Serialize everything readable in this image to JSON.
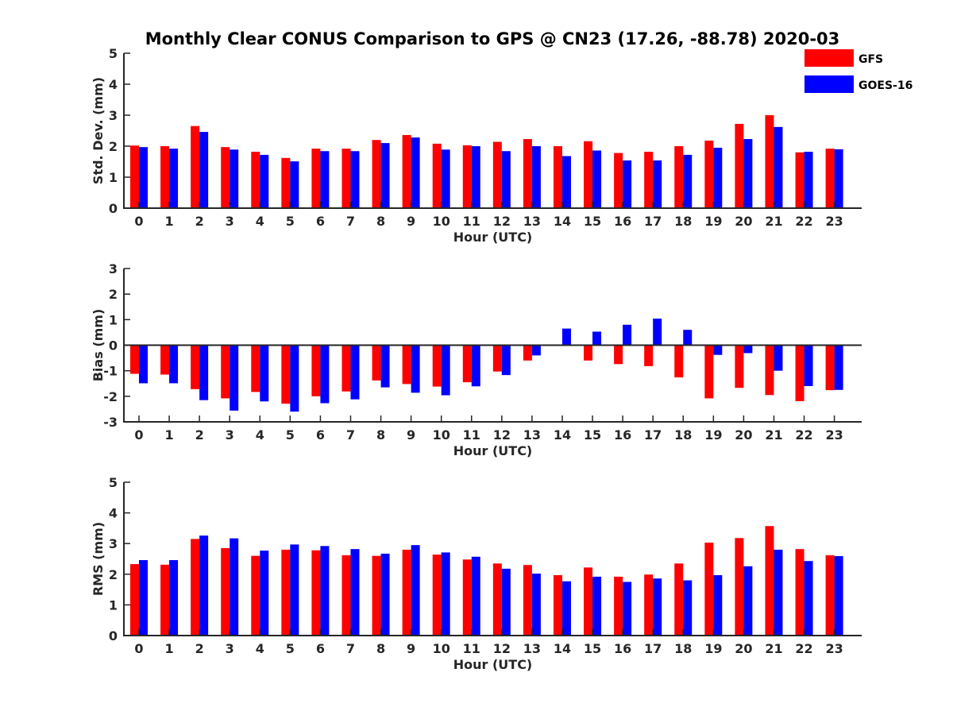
{
  "chart_data": {
    "type": "bar",
    "title": "Monthly Clear CONUS Comparison to GPS @ CN23 (17.26, -88.78) 2020-03",
    "legend": {
      "placement": "top-right",
      "entries": [
        {
          "name": "GFS",
          "color": "#ff0000"
        },
        {
          "name": "GOES-16",
          "color": "#0000ff"
        }
      ]
    },
    "categories": [
      "0",
      "1",
      "2",
      "3",
      "4",
      "5",
      "6",
      "7",
      "8",
      "9",
      "10",
      "11",
      "12",
      "13",
      "14",
      "15",
      "16",
      "17",
      "18",
      "19",
      "20",
      "21",
      "22",
      "23"
    ],
    "panels": [
      {
        "id": "std",
        "ylabel": "Std. Dev. (mm)",
        "xlabel": "Hour (UTC)",
        "ylim": [
          0,
          5
        ],
        "yticks": [
          0,
          1,
          2,
          3,
          4,
          5
        ],
        "series": [
          {
            "name": "GFS",
            "values": [
              2.02,
              2.0,
              2.65,
              1.97,
              1.82,
              1.62,
              1.92,
              1.92,
              2.2,
              2.36,
              2.08,
              2.03,
              2.14,
              2.23,
              2.0,
              2.16,
              1.78,
              1.82,
              2.0,
              2.18,
              2.72,
              3.0,
              1.8,
              1.92
            ]
          },
          {
            "name": "GOES-16",
            "values": [
              1.97,
              1.92,
              2.46,
              1.89,
              1.72,
              1.51,
              1.84,
              1.84,
              2.1,
              2.28,
              1.89,
              2.0,
              1.84,
              2.0,
              1.68,
              1.86,
              1.54,
              1.54,
              1.72,
              1.95,
              2.23,
              2.62,
              1.82,
              1.9
            ]
          }
        ]
      },
      {
        "id": "bias",
        "ylabel": "Bias (mm)",
        "xlabel": "Hour (UTC)",
        "ylim": [
          -3,
          3
        ],
        "yticks": [
          -3,
          -2,
          -1,
          0,
          1,
          2,
          3
        ],
        "series": [
          {
            "name": "GFS",
            "values": [
              -1.12,
              -1.15,
              -1.72,
              -2.08,
              -1.83,
              -2.29,
              -2.0,
              -1.81,
              -1.38,
              -1.52,
              -1.62,
              -1.45,
              -1.03,
              -0.6,
              -0.03,
              -0.6,
              -0.74,
              -0.82,
              -1.26,
              -2.08,
              -1.67,
              -1.95,
              -2.19,
              -1.76
            ]
          },
          {
            "name": "GOES-16",
            "values": [
              -1.49,
              -1.49,
              -2.15,
              -2.56,
              -2.2,
              -2.6,
              -2.27,
              -2.12,
              -1.65,
              -1.86,
              -1.96,
              -1.61,
              -1.17,
              -0.4,
              0.65,
              0.53,
              0.8,
              1.04,
              0.6,
              -0.38,
              -0.31,
              -1.0,
              -1.6,
              -1.75
            ]
          }
        ]
      },
      {
        "id": "rms",
        "ylabel": "RMS (mm)",
        "xlabel": "Hour (UTC)",
        "ylim": [
          0,
          5
        ],
        "yticks": [
          0,
          1,
          2,
          3,
          4,
          5
        ],
        "series": [
          {
            "name": "GFS",
            "values": [
              2.33,
              2.31,
              3.15,
              2.85,
              2.6,
              2.8,
              2.78,
              2.62,
              2.6,
              2.8,
              2.64,
              2.48,
              2.35,
              2.3,
              1.97,
              2.22,
              1.92,
              1.99,
              2.35,
              3.03,
              3.18,
              3.57,
              2.82,
              2.62
            ]
          },
          {
            "name": "GOES-16",
            "values": [
              2.46,
              2.46,
              3.26,
              3.17,
              2.77,
              2.97,
              2.92,
              2.82,
              2.67,
              2.95,
              2.71,
              2.57,
              2.18,
              2.02,
              1.77,
              1.92,
              1.75,
              1.86,
              1.8,
              1.97,
              2.26,
              2.8,
              2.43,
              2.59
            ]
          }
        ]
      }
    ]
  }
}
